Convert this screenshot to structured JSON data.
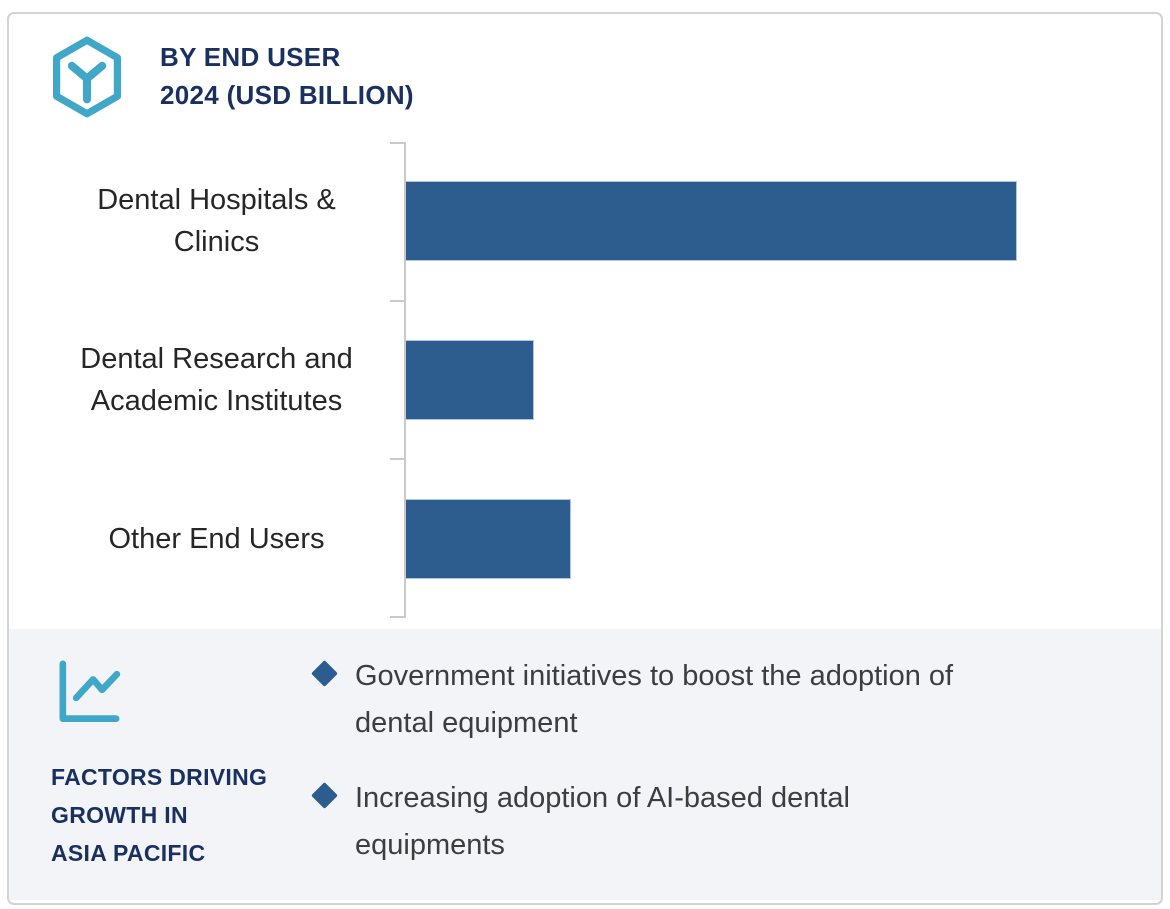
{
  "header": {
    "title": "BY END USER\n2024 (USD BILLION)",
    "icon": "hexagon-cube-icon"
  },
  "chart_data": {
    "type": "bar",
    "orientation": "horizontal",
    "title": "BY END USER 2024 (USD BILLION)",
    "categories": [
      "Dental Hospitals & Clinics",
      "Dental Research and Academic Institutes",
      "Other End Users"
    ],
    "category_labels_display": [
      "Dental Hospitals &\nClinics",
      "Dental Research and\nAcademic Institutes",
      "Other End Users"
    ],
    "values": [
      1.0,
      0.21,
      0.27
    ],
    "value_note": "bars carry no data labels in source; values are relative bar lengths (longest bar = 1.0)",
    "xlim": [
      0,
      1.22
    ],
    "xlabel": "",
    "ylabel": "",
    "grid": false,
    "legend": false,
    "bar_color": "#2d5d8e",
    "axis_color": "#c9c9c9"
  },
  "factors_panel": {
    "icon": "line-chart-icon",
    "heading": "FACTORS DRIVING\nGROWTH IN\nASIA PACIFIC",
    "bullets": [
      "Government initiatives to boost the adoption of\ndental equipment",
      "Increasing adoption of AI-based dental\nequipments"
    ]
  },
  "colors": {
    "accent_teal": "#41a7c8",
    "navy": "#1a3160",
    "bar_blue": "#2d5d8e",
    "panel_background": "#f2f4f8",
    "card_border": "#d2d3d6",
    "body_text": "#3d3d3d"
  }
}
